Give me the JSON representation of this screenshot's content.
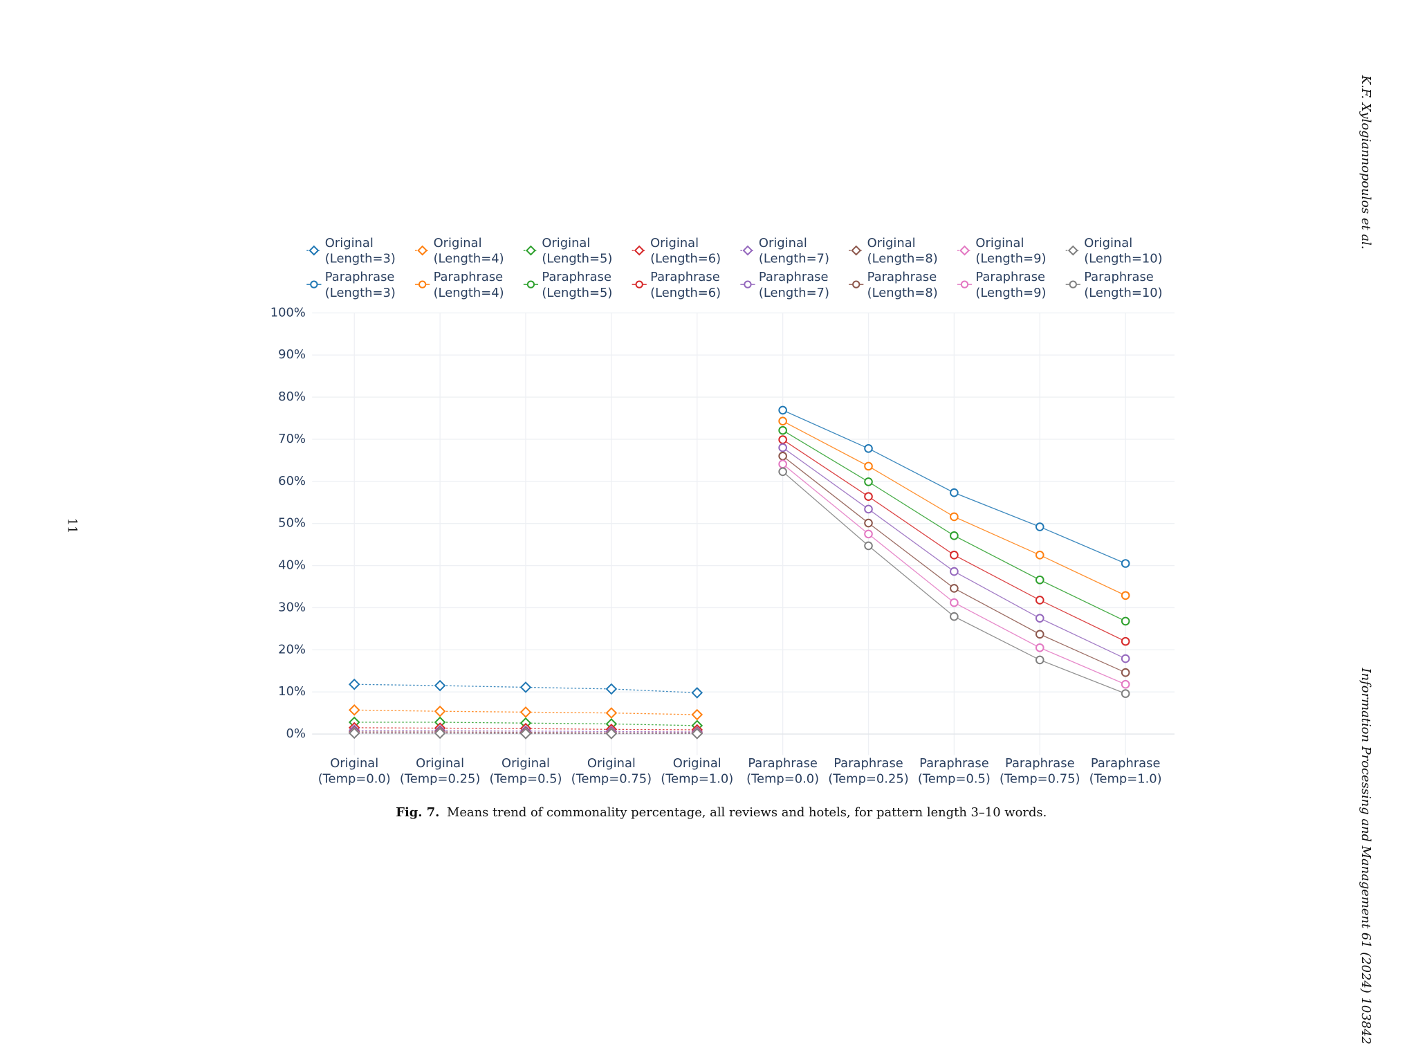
{
  "page_number": "11",
  "running_head": "K.F. Xylogiannopoulos et al.",
  "journal": "Information Processing and Management 61 (2024) 103842",
  "caption": {
    "label": "Fig. 7.",
    "text": "Means trend of commonality percentage, all reviews and hotels, for pattern length 3–10 words."
  },
  "chart_data": {
    "type": "line",
    "categories": [
      "Original\n(Temp=0.0)",
      "Original\n(Temp=0.25)",
      "Original\n(Temp=0.5)",
      "Original\n(Temp=0.75)",
      "Original\n(Temp=1.0)",
      "Paraphrase\n(Temp=0.0)",
      "Paraphrase\n(Temp=0.25)",
      "Paraphrase\n(Temp=0.5)",
      "Paraphrase\n(Temp=0.75)",
      "Paraphrase\n(Temp=1.0)"
    ],
    "ylim": [
      -5,
      100
    ],
    "yticks": [
      {
        "value": 0,
        "label": "0%"
      },
      {
        "value": 10,
        "label": "10%"
      },
      {
        "value": 20,
        "label": "20%"
      },
      {
        "value": 30,
        "label": "30%"
      },
      {
        "value": 40,
        "label": "40%"
      },
      {
        "value": 50,
        "label": "50%"
      },
      {
        "value": 60,
        "label": "60%"
      },
      {
        "value": 70,
        "label": "70%"
      },
      {
        "value": 80,
        "label": "80%"
      },
      {
        "value": 90,
        "label": "90%"
      },
      {
        "value": 100,
        "label": "100%"
      }
    ],
    "grid": true,
    "legend": "top",
    "series": [
      {
        "name": "Original\n(Length=3)",
        "color": "#1f77b4",
        "marker": "diamond",
        "dash": "dot",
        "values": [
          11.8,
          11.5,
          11.1,
          10.7,
          9.8,
          null,
          null,
          null,
          null,
          null
        ]
      },
      {
        "name": "Paraphrase\n(Length=3)",
        "color": "#1f77b4",
        "marker": "circle",
        "dash": "solid",
        "values": [
          null,
          null,
          null,
          null,
          null,
          76.9,
          67.8,
          57.3,
          49.2,
          40.5
        ]
      },
      {
        "name": "Original\n(Length=4)",
        "color": "#ff7f0e",
        "marker": "diamond",
        "dash": "dot",
        "values": [
          5.7,
          5.4,
          5.2,
          5.0,
          4.6,
          null,
          null,
          null,
          null,
          null
        ]
      },
      {
        "name": "Paraphrase\n(Length=4)",
        "color": "#ff7f0e",
        "marker": "circle",
        "dash": "solid",
        "values": [
          null,
          null,
          null,
          null,
          null,
          74.3,
          63.6,
          51.6,
          42.5,
          32.9
        ]
      },
      {
        "name": "Original\n(Length=5)",
        "color": "#2ca02c",
        "marker": "diamond",
        "dash": "dot",
        "values": [
          2.8,
          2.8,
          2.6,
          2.4,
          2.0,
          null,
          null,
          null,
          null,
          null
        ]
      },
      {
        "name": "Paraphrase\n(Length=5)",
        "color": "#2ca02c",
        "marker": "circle",
        "dash": "solid",
        "values": [
          null,
          null,
          null,
          null,
          null,
          72.1,
          59.9,
          47.1,
          36.6,
          26.8
        ]
      },
      {
        "name": "Original\n(Length=6)",
        "color": "#d62728",
        "marker": "diamond",
        "dash": "dot",
        "values": [
          1.5,
          1.4,
          1.3,
          1.1,
          1.0,
          null,
          null,
          null,
          null,
          null
        ]
      },
      {
        "name": "Paraphrase\n(Length=6)",
        "color": "#d62728",
        "marker": "circle",
        "dash": "solid",
        "values": [
          null,
          null,
          null,
          null,
          null,
          69.9,
          56.4,
          42.5,
          31.8,
          22.0
        ]
      },
      {
        "name": "Original\n(Length=7)",
        "color": "#9467bd",
        "marker": "diamond",
        "dash": "dot",
        "values": [
          0.9,
          0.8,
          0.7,
          0.6,
          0.5,
          null,
          null,
          null,
          null,
          null
        ]
      },
      {
        "name": "Paraphrase\n(Length=7)",
        "color": "#9467bd",
        "marker": "circle",
        "dash": "solid",
        "values": [
          null,
          null,
          null,
          null,
          null,
          68.0,
          53.4,
          38.6,
          27.5,
          17.9
        ]
      },
      {
        "name": "Original\n(Length=8)",
        "color": "#8c564b",
        "marker": "diamond",
        "dash": "dot",
        "values": [
          0.5,
          0.5,
          0.4,
          0.3,
          0.3,
          null,
          null,
          null,
          null,
          null
        ]
      },
      {
        "name": "Paraphrase\n(Length=8)",
        "color": "#8c564b",
        "marker": "circle",
        "dash": "solid",
        "values": [
          null,
          null,
          null,
          null,
          null,
          66.0,
          50.1,
          34.6,
          23.7,
          14.6
        ]
      },
      {
        "name": "Original\n(Length=9)",
        "color": "#e377c2",
        "marker": "diamond",
        "dash": "dot",
        "values": [
          0.3,
          0.3,
          0.2,
          0.2,
          0.2,
          null,
          null,
          null,
          null,
          null
        ]
      },
      {
        "name": "Paraphrase\n(Length=9)",
        "color": "#e377c2",
        "marker": "circle",
        "dash": "solid",
        "values": [
          null,
          null,
          null,
          null,
          null,
          64.1,
          47.5,
          31.2,
          20.5,
          11.8
        ]
      },
      {
        "name": "Original\n(Length=10)",
        "color": "#7f7f7f",
        "marker": "diamond",
        "dash": "dot",
        "values": [
          0.2,
          0.2,
          0.1,
          0.1,
          0.1,
          null,
          null,
          null,
          null,
          null
        ]
      },
      {
        "name": "Paraphrase\n(Length=10)",
        "color": "#7f7f7f",
        "marker": "circle",
        "dash": "solid",
        "values": [
          null,
          null,
          null,
          null,
          null,
          62.3,
          44.7,
          27.9,
          17.6,
          9.6
        ]
      }
    ]
  }
}
